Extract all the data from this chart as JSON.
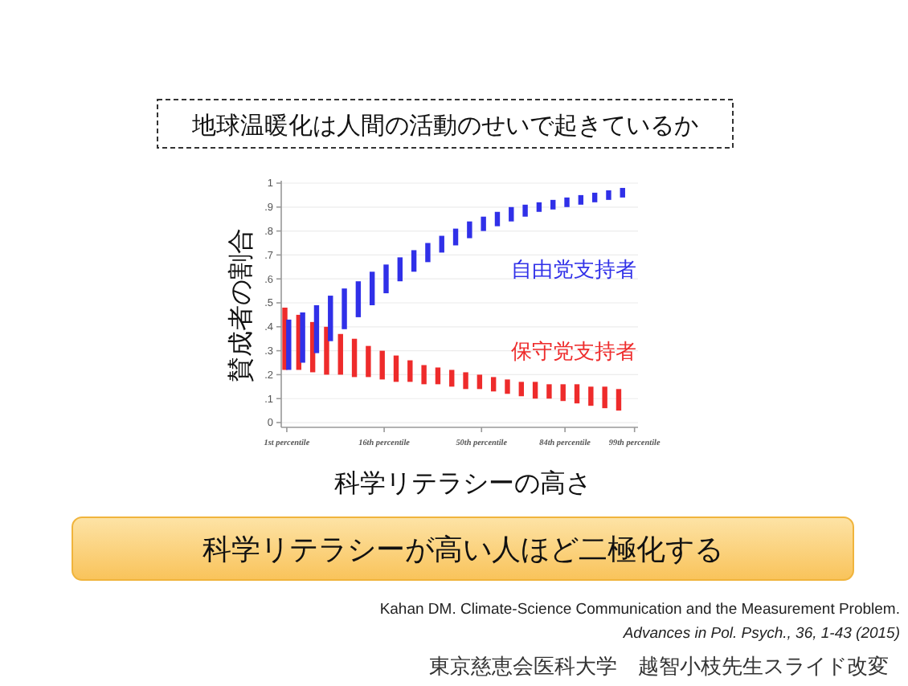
{
  "chart_data": {
    "type": "bar",
    "title": "地球温暖化は人間の活動のせいで起きているか",
    "ylabel": "賛成者の割合",
    "xlabel": "科学リテラシーの高さ",
    "categories": [
      "1st percentile",
      null,
      null,
      null,
      null,
      null,
      null,
      "16th percentile",
      null,
      null,
      null,
      null,
      null,
      null,
      "50th percentile",
      null,
      null,
      null,
      null,
      null,
      "84th percentile",
      null,
      null,
      null,
      null,
      "99th percentile"
    ],
    "series": [
      {
        "name": "保守党支持者",
        "color": "#ee2b2b",
        "base": [
          0.22,
          0.22,
          0.21,
          0.2,
          0.2,
          0.19,
          0.19,
          0.18,
          0.17,
          0.17,
          0.16,
          0.16,
          0.15,
          0.14,
          0.14,
          0.13,
          0.12,
          0.11,
          0.1,
          0.1,
          0.09,
          0.08,
          0.07,
          0.06,
          0.05,
          null
        ],
        "values": [
          0.26,
          0.23,
          0.21,
          0.2,
          0.17,
          0.16,
          0.13,
          0.12,
          0.11,
          0.09,
          0.08,
          0.07,
          0.07,
          0.07,
          0.06,
          0.06,
          0.06,
          0.06,
          0.07,
          0.06,
          0.07,
          0.08,
          0.08,
          0.09,
          0.09,
          null
        ]
      },
      {
        "name": "自由党支持者",
        "color": "#3030e8",
        "base": [
          0.22,
          0.25,
          0.29,
          0.34,
          0.39,
          0.44,
          0.49,
          0.54,
          0.59,
          0.63,
          0.67,
          0.71,
          0.74,
          0.77,
          0.8,
          0.82,
          0.84,
          0.86,
          0.88,
          0.89,
          0.9,
          0.91,
          0.92,
          0.93,
          0.94,
          null
        ],
        "values": [
          0.21,
          0.21,
          0.2,
          0.19,
          0.17,
          0.15,
          0.14,
          0.12,
          0.1,
          0.09,
          0.08,
          0.07,
          0.07,
          0.07,
          0.06,
          0.06,
          0.06,
          0.05,
          0.04,
          0.04,
          0.04,
          0.04,
          0.04,
          0.04,
          0.04,
          null
        ]
      }
    ],
    "ylim": [
      -0.02,
      1.01
    ],
    "yticks": [
      0,
      {
        "value": 0.1,
        "label": ".1"
      },
      {
        "value": 0.2,
        "label": ".2"
      },
      {
        "value": 0.3,
        "label": ".3"
      },
      {
        "value": 0.4,
        "label": ".4"
      },
      {
        "value": 0.5,
        "label": ".5"
      },
      {
        "value": 0.6,
        "label": ".6"
      },
      {
        "value": 0.7,
        "label": ".7"
      },
      {
        "value": 0.8,
        "label": ".8"
      },
      {
        "value": 0.9,
        "label": ".9"
      },
      1
    ],
    "grid": "y",
    "annotations": [
      "科学リテラシーが高い人ほど二極化する",
      "Kahan DM.  Climate-Science Communication and the Measurement Problem.",
      "Advances in Pol. Psych., 36, 1-43 (2015)",
      "東京慈恵会医科大学　越智小枝先生スライド改変"
    ]
  }
}
